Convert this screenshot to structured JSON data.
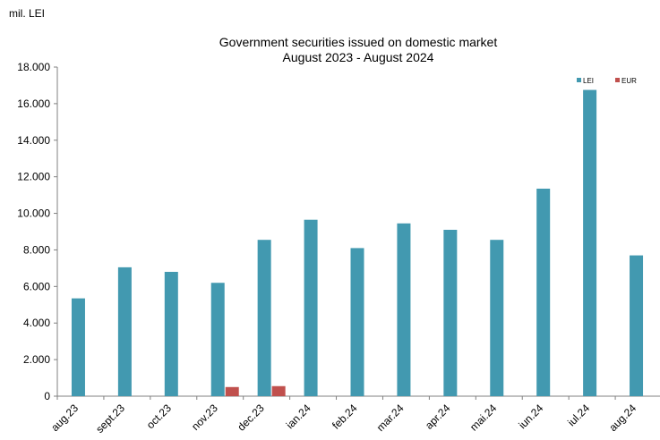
{
  "chart_data": {
    "type": "bar",
    "unit_label": "mil. LEI",
    "title": "Government securities issued on domestic market",
    "subtitle": "August 2023 - August 2024",
    "categories": [
      "aug.23",
      "sept.23",
      "oct.23",
      "nov.23",
      "dec.23",
      "ian.24",
      "feb.24",
      "mar.24",
      "apr.24",
      "mai.24",
      "iun.24",
      "iul.24",
      "aug.24"
    ],
    "series": [
      {
        "name": "LEI",
        "color": "#4299B0",
        "values": [
          5350,
          7050,
          6800,
          6200,
          8550,
          9650,
          8100,
          9450,
          9100,
          8550,
          11350,
          16750,
          7700
        ]
      },
      {
        "name": "EUR",
        "color": "#C0504D",
        "values": [
          0,
          0,
          0,
          500,
          550,
          0,
          0,
          0,
          0,
          0,
          0,
          0,
          0
        ]
      }
    ],
    "ylim": [
      0,
      18000
    ],
    "yticks": [
      "0",
      "2.000",
      "4.000",
      "6.000",
      "8.000",
      "10.000",
      "12.000",
      "14.000",
      "16.000",
      "18.000"
    ],
    "ytick_values": [
      0,
      2000,
      4000,
      6000,
      8000,
      10000,
      12000,
      14000,
      16000,
      18000
    ],
    "legend_position": "top-right",
    "grid": false
  }
}
